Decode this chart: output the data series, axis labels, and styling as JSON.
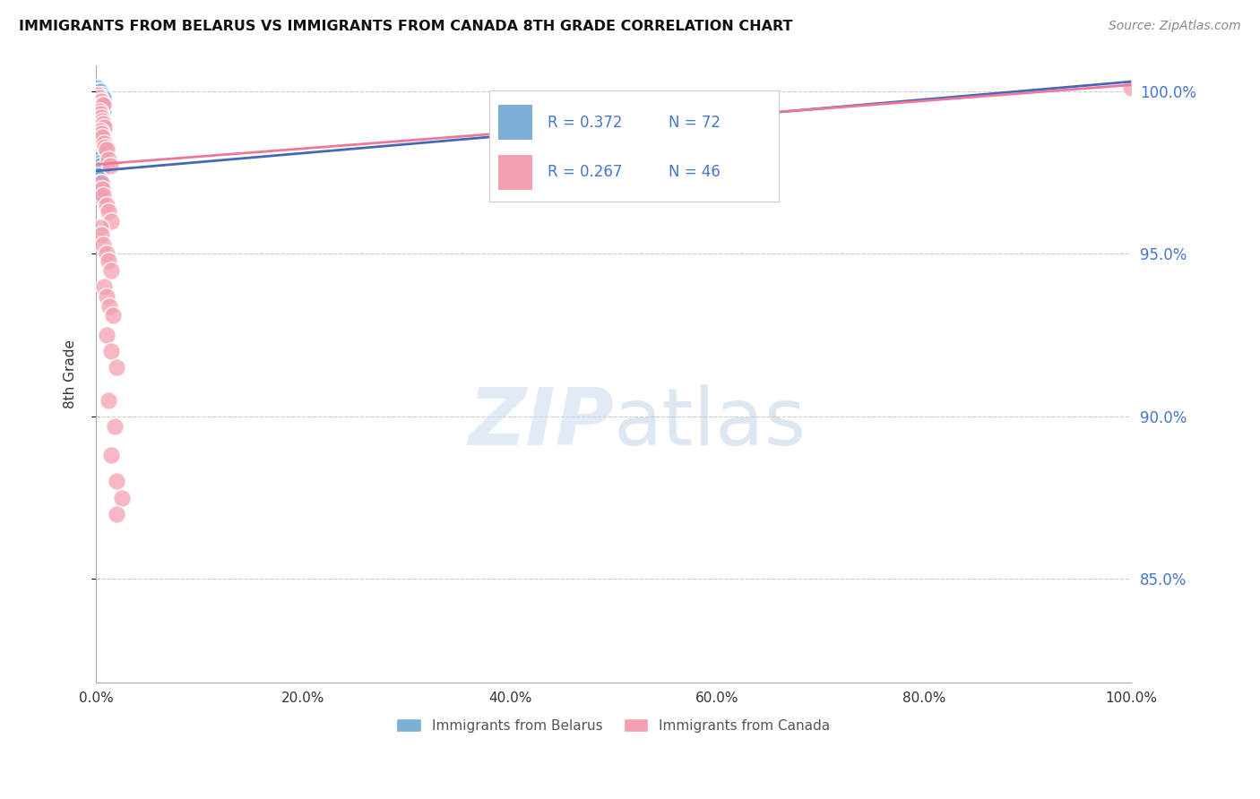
{
  "title": "IMMIGRANTS FROM BELARUS VS IMMIGRANTS FROM CANADA 8TH GRADE CORRELATION CHART",
  "source": "Source: ZipAtlas.com",
  "ylabel": "8th Grade",
  "color_belarus": "#7BAFD4",
  "color_canada": "#F4A0B0",
  "color_blue_text": "#4477CC",
  "color_pink_line": "#EE7799",
  "color_blue_line": "#4466BB",
  "color_grid": "#CCCCCC",
  "color_right_ticks": "#4477CC",
  "xmin": 0.0,
  "xmax": 1.0,
  "ymin": 0.818,
  "ymax": 1.008,
  "yticks": [
    0.85,
    0.9,
    0.95,
    1.0
  ],
  "ytick_labels": [
    "85.0%",
    "90.0%",
    "95.0%",
    "100.0%"
  ],
  "xticks": [
    0.0,
    0.2,
    0.4,
    0.6,
    0.8,
    1.0
  ],
  "xtick_labels": [
    "0.0%",
    "20.0%",
    "40.0%",
    "60.0%",
    "80.0%",
    "100.0%"
  ],
  "legend_r1": "R = 0.372",
  "legend_n1": "N = 72",
  "legend_r2": "R = 0.267",
  "legend_n2": "N = 46",
  "blue_line_x": [
    0.0,
    1.0
  ],
  "blue_line_y": [
    0.9755,
    1.003
  ],
  "pink_line_x": [
    0.0,
    1.0
  ],
  "pink_line_y": [
    0.9775,
    1.002
  ],
  "belarus_pts": [
    [
      0.001,
      1.001
    ],
    [
      0.002,
      1.0
    ],
    [
      0.002,
      0.999
    ],
    [
      0.003,
      1.0
    ],
    [
      0.003,
      0.999
    ],
    [
      0.003,
      0.998
    ],
    [
      0.004,
      1.0
    ],
    [
      0.004,
      0.999
    ],
    [
      0.004,
      0.998
    ],
    [
      0.005,
      0.999
    ],
    [
      0.005,
      0.998
    ],
    [
      0.005,
      0.997
    ],
    [
      0.006,
      0.999
    ],
    [
      0.006,
      0.998
    ],
    [
      0.007,
      0.998
    ],
    [
      0.001,
      0.999
    ],
    [
      0.002,
      0.998
    ],
    [
      0.002,
      0.997
    ],
    [
      0.003,
      0.997
    ],
    [
      0.003,
      0.996
    ],
    [
      0.004,
      0.997
    ],
    [
      0.004,
      0.996
    ],
    [
      0.004,
      0.995
    ],
    [
      0.005,
      0.996
    ],
    [
      0.005,
      0.995
    ],
    [
      0.006,
      0.995
    ],
    [
      0.007,
      0.994
    ],
    [
      0.001,
      0.997
    ],
    [
      0.002,
      0.996
    ],
    [
      0.002,
      0.995
    ],
    [
      0.003,
      0.994
    ],
    [
      0.003,
      0.993
    ],
    [
      0.004,
      0.993
    ],
    [
      0.005,
      0.992
    ],
    [
      0.005,
      0.991
    ],
    [
      0.006,
      0.99
    ],
    [
      0.007,
      0.989
    ],
    [
      0.008,
      0.988
    ],
    [
      0.001,
      0.994
    ],
    [
      0.002,
      0.993
    ],
    [
      0.002,
      0.992
    ],
    [
      0.003,
      0.991
    ],
    [
      0.004,
      0.99
    ],
    [
      0.005,
      0.989
    ],
    [
      0.005,
      0.988
    ],
    [
      0.006,
      0.987
    ],
    [
      0.007,
      0.986
    ],
    [
      0.001,
      0.99
    ],
    [
      0.002,
      0.989
    ],
    [
      0.002,
      0.988
    ],
    [
      0.003,
      0.987
    ],
    [
      0.004,
      0.986
    ],
    [
      0.005,
      0.985
    ],
    [
      0.006,
      0.984
    ],
    [
      0.001,
      0.985
    ],
    [
      0.002,
      0.984
    ],
    [
      0.003,
      0.983
    ],
    [
      0.004,
      0.982
    ],
    [
      0.005,
      0.981
    ],
    [
      0.006,
      0.98
    ],
    [
      0.001,
      0.98
    ],
    [
      0.002,
      0.979
    ],
    [
      0.003,
      0.978
    ],
    [
      0.004,
      0.977
    ],
    [
      0.005,
      0.976
    ],
    [
      0.001,
      0.975
    ],
    [
      0.002,
      0.974
    ],
    [
      0.003,
      0.973
    ],
    [
      0.004,
      0.972
    ],
    [
      0.001,
      0.97
    ],
    [
      0.002,
      0.969
    ],
    [
      0.003,
      0.968
    ]
  ],
  "canada_pts": [
    [
      0.002,
      0.999
    ],
    [
      0.003,
      0.998
    ],
    [
      0.004,
      0.997
    ],
    [
      0.005,
      0.997
    ],
    [
      0.006,
      0.996
    ],
    [
      0.007,
      0.996
    ],
    [
      0.003,
      0.994
    ],
    [
      0.004,
      0.993
    ],
    [
      0.005,
      0.992
    ],
    [
      0.006,
      0.991
    ],
    [
      0.007,
      0.99
    ],
    [
      0.008,
      0.989
    ],
    [
      0.004,
      0.988
    ],
    [
      0.005,
      0.987
    ],
    [
      0.006,
      0.986
    ],
    [
      0.008,
      0.984
    ],
    [
      0.009,
      0.983
    ],
    [
      0.01,
      0.982
    ],
    [
      0.012,
      0.979
    ],
    [
      0.014,
      0.977
    ],
    [
      0.005,
      0.972
    ],
    [
      0.006,
      0.97
    ],
    [
      0.007,
      0.968
    ],
    [
      0.01,
      0.965
    ],
    [
      0.012,
      0.963
    ],
    [
      0.015,
      0.96
    ],
    [
      0.004,
      0.958
    ],
    [
      0.005,
      0.956
    ],
    [
      0.007,
      0.953
    ],
    [
      0.01,
      0.95
    ],
    [
      0.012,
      0.948
    ],
    [
      0.015,
      0.945
    ],
    [
      0.008,
      0.94
    ],
    [
      0.01,
      0.937
    ],
    [
      0.013,
      0.934
    ],
    [
      0.016,
      0.931
    ],
    [
      0.01,
      0.925
    ],
    [
      0.015,
      0.92
    ],
    [
      0.02,
      0.915
    ],
    [
      0.012,
      0.905
    ],
    [
      0.018,
      0.897
    ],
    [
      0.015,
      0.888
    ],
    [
      0.02,
      0.88
    ],
    [
      0.025,
      0.875
    ],
    [
      0.02,
      0.87
    ],
    [
      1.0,
      1.001
    ]
  ]
}
